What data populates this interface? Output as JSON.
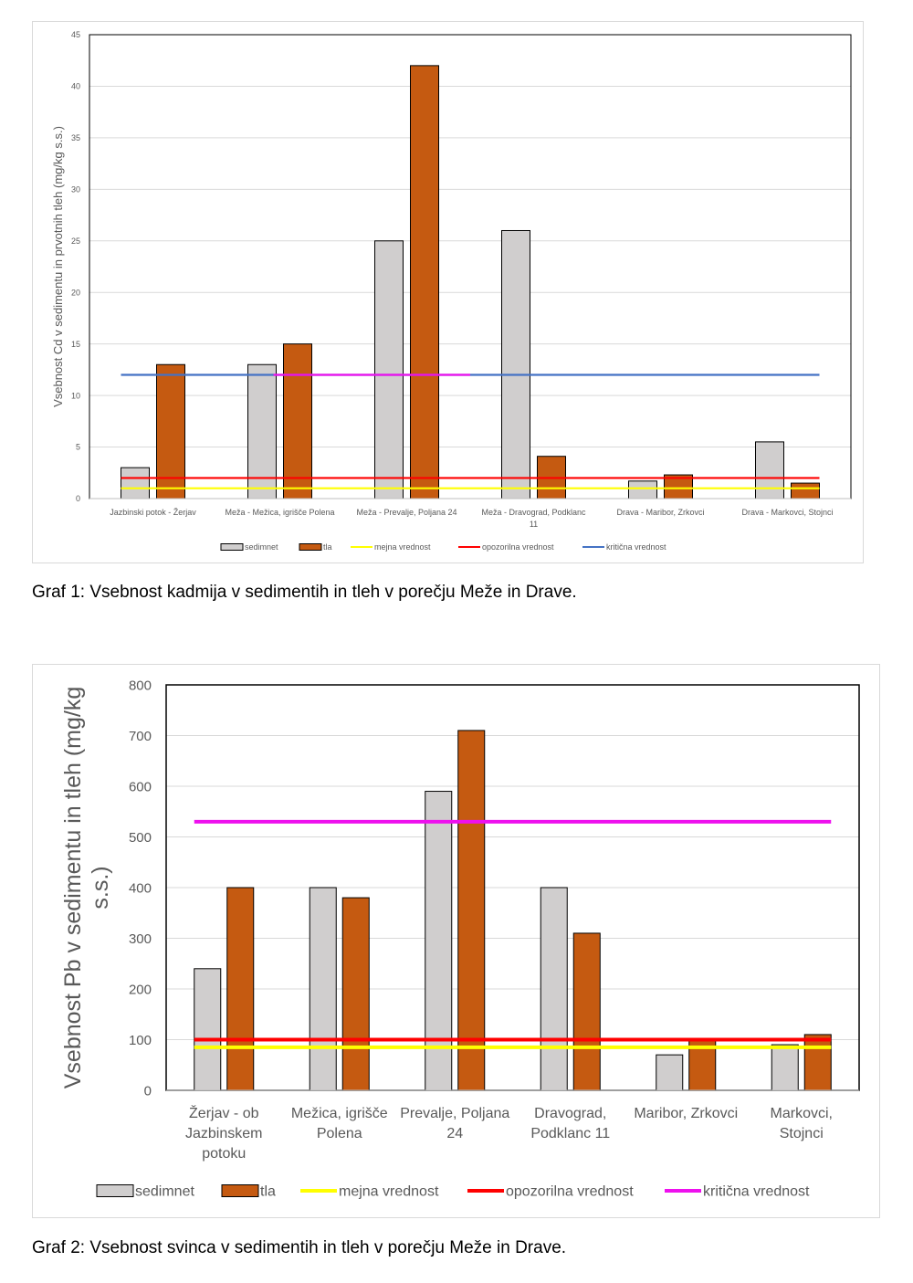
{
  "captions": {
    "graf1": "Graf 1: Vsebnost kadmija v sedimentih in tleh v porečju Meže in Drave.",
    "graf2": "Graf 2: Vsebnost svinca v sedimentih in tleh v porečju Meže in Drave."
  },
  "chart_data": [
    {
      "type": "bar",
      "title": "",
      "xlabel": "",
      "ylabel": "Vsebnost Cd v sedimentu in prvotnih tleh (mg/kg s.s.)",
      "ylim": [
        0,
        45
      ],
      "yticks": [
        0,
        5,
        10,
        15,
        20,
        25,
        30,
        35,
        40,
        45
      ],
      "grid": true,
      "legend_position": "bottom",
      "categories": [
        [
          "Jazbinski potok - Žerjav"
        ],
        [
          "Meža - Mežica, igrišče Polena"
        ],
        [
          "Meža - Prevalje, Poljana 24"
        ],
        [
          "Meža - Dravograd, Podklanc",
          "11"
        ],
        [
          "Drava - Maribor, Zrkovci"
        ],
        [
          "Drava - Markovci, Stojnci"
        ]
      ],
      "series": [
        {
          "name": "sedimnet",
          "kind": "bar",
          "color": "#d0cece",
          "values": [
            3,
            13,
            25,
            26,
            1.7,
            5.5
          ]
        },
        {
          "name": "tla",
          "kind": "bar",
          "color": "#c55a11",
          "values": [
            13,
            15,
            42,
            4.1,
            2.3,
            1.5
          ]
        },
        {
          "name": "mejna vrednost",
          "kind": "line",
          "color": "#ffff00",
          "value": 1
        },
        {
          "name": "opozorilna vrednost",
          "kind": "line",
          "color": "#ff0000",
          "value": 2
        },
        {
          "name": "kritična vrednost",
          "kind": "line",
          "color": "#4472c4",
          "value": 12
        }
      ]
    },
    {
      "type": "bar",
      "title": "",
      "xlabel": "",
      "ylabel": [
        "Vsebnost Pb v sedimentu in tleh (mg/kg",
        "s.s.)"
      ],
      "ylim": [
        0,
        800
      ],
      "yticks": [
        0,
        100,
        200,
        300,
        400,
        500,
        600,
        700,
        800
      ],
      "grid": true,
      "legend_position": "bottom",
      "categories": [
        [
          "Žerjav - ob",
          "Jazbinskem",
          "potoku"
        ],
        [
          "Mežica, igrišče",
          "Polena"
        ],
        [
          "Prevalje, Poljana",
          "24"
        ],
        [
          "Dravograd,",
          "Podklanc 11"
        ],
        [
          "Maribor, Zrkovci"
        ],
        [
          "Markovci,",
          "Stojnci"
        ]
      ],
      "series": [
        {
          "name": "sedimnet",
          "kind": "bar",
          "color": "#d0cece",
          "values": [
            240,
            400,
            590,
            400,
            70,
            90
          ]
        },
        {
          "name": "tla",
          "kind": "bar",
          "color": "#c55a11",
          "values": [
            400,
            380,
            710,
            310,
            100,
            110
          ]
        },
        {
          "name": "mejna vrednost",
          "kind": "line",
          "color": "#ffff00",
          "value": 85
        },
        {
          "name": "opozorilna vrednost",
          "kind": "line",
          "color": "#ff0000",
          "value": 100
        },
        {
          "name": "kritična vrednost",
          "kind": "line",
          "color": "#ee10ee",
          "value": 530
        }
      ]
    }
  ]
}
